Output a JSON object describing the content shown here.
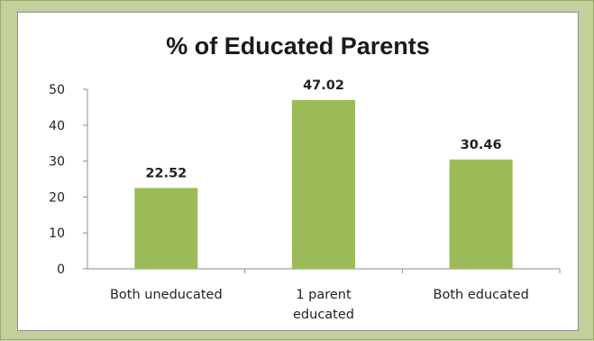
{
  "chart_data": {
    "type": "bar",
    "title": "% of Educated Parents",
    "categories": [
      [
        "Both uneducated"
      ],
      [
        "1 parent",
        "educated"
      ],
      [
        "Both educated"
      ]
    ],
    "values": [
      22.52,
      47.02,
      30.46
    ],
    "data_labels": [
      "22.52",
      "47.02",
      "30.46"
    ],
    "ylim": [
      0,
      50
    ],
    "yticks": [
      "0",
      "10",
      "20",
      "30",
      "40",
      "50"
    ],
    "xlabel": "",
    "ylabel": "",
    "grid": false,
    "legend": "none",
    "bar_color": "#9bbb59"
  }
}
